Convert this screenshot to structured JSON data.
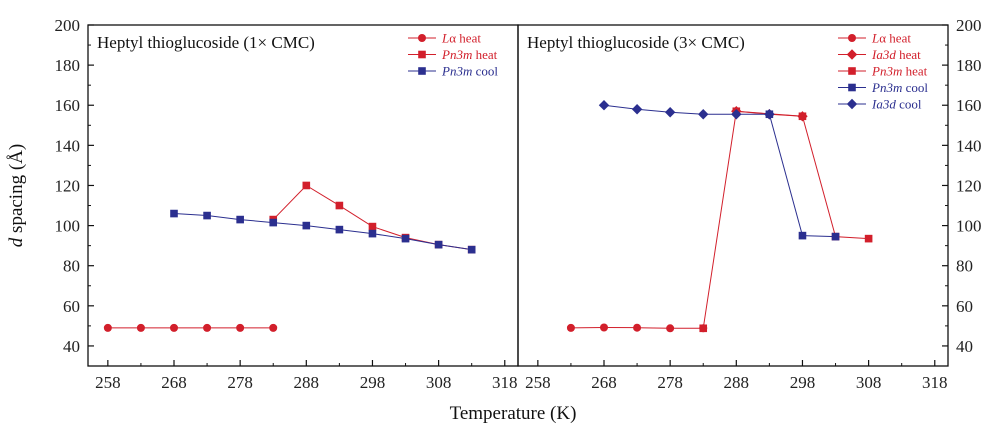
{
  "chart_data": {
    "type": "line",
    "xlabel": "Temperature (K)",
    "ylabel_italic": "d",
    "ylabel_rest": " spacing (Å)",
    "xlim": [
      255,
      320
    ],
    "ylim": [
      30,
      200
    ],
    "xticks": [
      258,
      268,
      278,
      288,
      298,
      308,
      318
    ],
    "yticks": [
      40,
      60,
      80,
      100,
      120,
      140,
      160,
      180,
      200
    ],
    "grid": false,
    "panels": [
      {
        "title": "Heptyl thioglucoside (1× CMC)",
        "legend_position": "top-right",
        "series": [
          {
            "legend_italic": "L",
            "legend_rest": "α heat",
            "color": "#d21f2b",
            "marker": "circle",
            "points": [
              [
                258,
                49
              ],
              [
                263,
                49
              ],
              [
                268,
                49
              ],
              [
                273,
                49
              ],
              [
                278,
                49
              ],
              [
                283,
                49
              ]
            ]
          },
          {
            "legend_italic": "Pn3m",
            "legend_rest": " heat",
            "color": "#d21f2b",
            "marker": "square",
            "points": [
              [
                283,
                103
              ],
              [
                288,
                120
              ],
              [
                293,
                110
              ],
              [
                298,
                99.5
              ],
              [
                303,
                94
              ],
              [
                308,
                90.5
              ],
              [
                313,
                88
              ]
            ]
          },
          {
            "legend_italic": "Pn3m",
            "legend_rest": " cool",
            "color": "#2b2f8f",
            "marker": "square",
            "points": [
              [
                268,
                106
              ],
              [
                273,
                105
              ],
              [
                278,
                103
              ],
              [
                283,
                101.5
              ],
              [
                288,
                100
              ],
              [
                293,
                98
              ],
              [
                298,
                96
              ],
              [
                303,
                93.5
              ],
              [
                308,
                90.5
              ],
              [
                313,
                88
              ]
            ]
          }
        ]
      },
      {
        "title": "Heptyl thioglucoside (3× CMC)",
        "legend_position": "top-right",
        "series": [
          {
            "legend_italic": "L",
            "legend_rest": "α heat",
            "color": "#d21f2b",
            "marker": "circle",
            "points": [
              [
                263,
                49
              ],
              [
                268,
                49.2
              ],
              [
                273,
                49.1
              ],
              [
                278,
                48.8
              ],
              [
                283,
                48.8
              ]
            ]
          },
          {
            "legend_italic": "Ia3d",
            "legend_rest": " heat",
            "color": "#d21f2b",
            "marker": "diamond",
            "points": [
              [
                288,
                157
              ],
              [
                293,
                155.5
              ],
              [
                298,
                154.5
              ]
            ]
          },
          {
            "legend_italic": "Pn3m",
            "legend_rest": " heat",
            "color": "#d21f2b",
            "marker": "square",
            "points": [
              [
                283,
                48.8
              ],
              [
                288,
                157
              ],
              [
                298,
                154.5
              ],
              [
                303,
                94.5
              ],
              [
                308,
                93.5
              ]
            ]
          },
          {
            "legend_italic": "Pn3m",
            "legend_rest": " cool",
            "color": "#2b2f8f",
            "marker": "square",
            "points": [
              [
                293,
                155.5
              ],
              [
                298,
                95
              ],
              [
                303,
                94.5
              ]
            ]
          },
          {
            "legend_italic": "Ia3d",
            "legend_rest": " cool",
            "color": "#2b2f8f",
            "marker": "diamond",
            "points": [
              [
                268,
                160
              ],
              [
                273,
                158
              ],
              [
                278,
                156.5
              ],
              [
                283,
                155.5
              ],
              [
                288,
                155.5
              ],
              [
                293,
                155.5
              ]
            ]
          }
        ]
      }
    ]
  }
}
